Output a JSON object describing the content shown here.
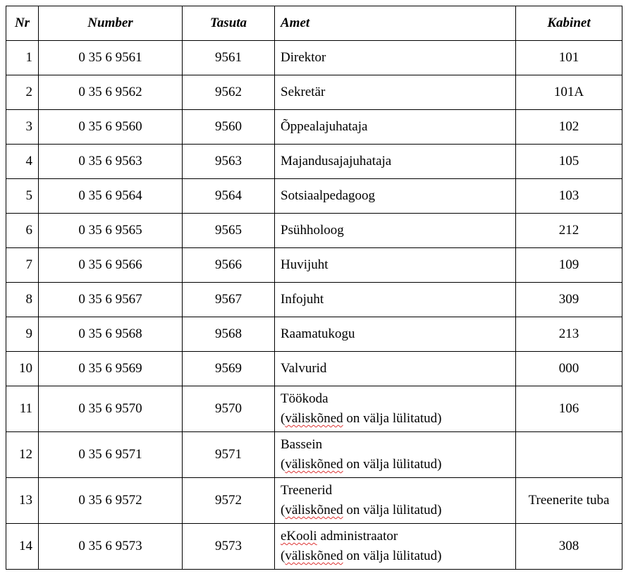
{
  "headers": {
    "nr": "Nr",
    "number": "Number",
    "tasuta": "Tasuta",
    "amet": "Amet",
    "kabinet": "Kabinet"
  },
  "rows": [
    {
      "nr": "1",
      "number": "0 35 6 9561",
      "tasuta": "9561",
      "amet": "Direktor",
      "note": "",
      "kabinet": "101"
    },
    {
      "nr": "2",
      "number": "0 35 6 9562",
      "tasuta": "9562",
      "amet": "Sekretär",
      "note": "",
      "kabinet": "101A"
    },
    {
      "nr": "3",
      "number": "0 35 6 9560",
      "tasuta": "9560",
      "amet": "Õppealajuhataja",
      "note": "",
      "kabinet": "102"
    },
    {
      "nr": "4",
      "number": "0 35 6 9563",
      "tasuta": "9563",
      "amet": "Majandusajajuhataja",
      "note": "",
      "kabinet": "105"
    },
    {
      "nr": "5",
      "number": "0 35 6 9564",
      "tasuta": "9564",
      "amet": "Sotsiaalpedagoog",
      "note": "",
      "kabinet": "103"
    },
    {
      "nr": "6",
      "number": "0 35 6 9565",
      "tasuta": "9565",
      "amet": "Psühholoog",
      "note": "",
      "kabinet": "212"
    },
    {
      "nr": "7",
      "number": "0 35 6 9566",
      "tasuta": "9566",
      "amet": "Huvijuht",
      "note": "",
      "kabinet": "109"
    },
    {
      "nr": "8",
      "number": "0 35 6 9567",
      "tasuta": "9567",
      "amet": "Infojuht",
      "note": "",
      "kabinet": "309"
    },
    {
      "nr": "9",
      "number": "0 35 6 9568",
      "tasuta": "9568",
      "amet": "Raamatukogu",
      "note": "",
      "kabinet": "213"
    },
    {
      "nr": "10",
      "number": "0 35 6 9569",
      "tasuta": "9569",
      "amet": "Valvurid",
      "note": "",
      "kabinet": "000"
    },
    {
      "nr": "11",
      "number": "0 35 6 9570",
      "tasuta": "9570",
      "amet": "Töökoda",
      "note": "(väliskõned on välja lülitatud)",
      "kabinet": "106"
    },
    {
      "nr": "12",
      "number": "0 35 6 9571",
      "tasuta": "9571",
      "amet": "Bassein",
      "note": "(väliskõned on välja lülitatud)",
      "kabinet": ""
    },
    {
      "nr": "13",
      "number": "0 35 6 9572",
      "tasuta": "9572",
      "amet": "Treenerid",
      "note": "(väliskõned on välja lülitatud)",
      "kabinet": "Treenerite tuba"
    },
    {
      "nr": "14",
      "number": "0 35 6 9573",
      "tasuta": "9573",
      "amet": "eKooli administraator",
      "note": "(väliskõned on välja lülitatud)",
      "kabinet": "308"
    }
  ]
}
